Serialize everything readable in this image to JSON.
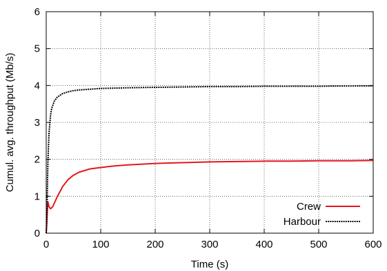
{
  "chart_data": {
    "type": "line",
    "title": "",
    "xlabel": "Time (s)",
    "ylabel": "Cumul. avg. throughput (Mb/s)",
    "xlim": [
      0,
      600
    ],
    "ylim": [
      0,
      6
    ],
    "xticks": [
      0,
      100,
      200,
      300,
      400,
      500,
      600
    ],
    "yticks": [
      0,
      1,
      2,
      3,
      4,
      5,
      6
    ],
    "grid": true,
    "legend_position": "bottom-right",
    "series": [
      {
        "name": "Crew",
        "color": "#e8141c",
        "dash": "solid",
        "x": [
          0,
          1,
          2,
          3,
          5,
          8,
          12,
          16,
          20,
          25,
          30,
          40,
          50,
          60,
          80,
          100,
          125,
          150,
          200,
          250,
          300,
          350,
          400,
          450,
          500,
          550,
          600
        ],
        "y": [
          0.0,
          0.25,
          0.6,
          0.85,
          0.72,
          0.66,
          0.72,
          0.85,
          0.98,
          1.12,
          1.26,
          1.45,
          1.57,
          1.65,
          1.74,
          1.78,
          1.82,
          1.85,
          1.89,
          1.91,
          1.93,
          1.94,
          1.95,
          1.95,
          1.96,
          1.96,
          1.97
        ]
      },
      {
        "name": "Harbour",
        "color": "#000000",
        "dash": "dotted",
        "x": [
          0,
          1,
          2,
          3,
          5,
          8,
          10,
          15,
          20,
          30,
          40,
          50,
          60,
          80,
          100,
          150,
          200,
          250,
          300,
          350,
          400,
          450,
          500,
          550,
          600
        ],
        "y": [
          0.0,
          0.4,
          1.1,
          1.9,
          2.7,
          3.2,
          3.38,
          3.58,
          3.68,
          3.78,
          3.83,
          3.86,
          3.88,
          3.9,
          3.92,
          3.94,
          3.95,
          3.96,
          3.97,
          3.97,
          3.98,
          3.98,
          3.98,
          3.99,
          3.99
        ]
      }
    ]
  }
}
